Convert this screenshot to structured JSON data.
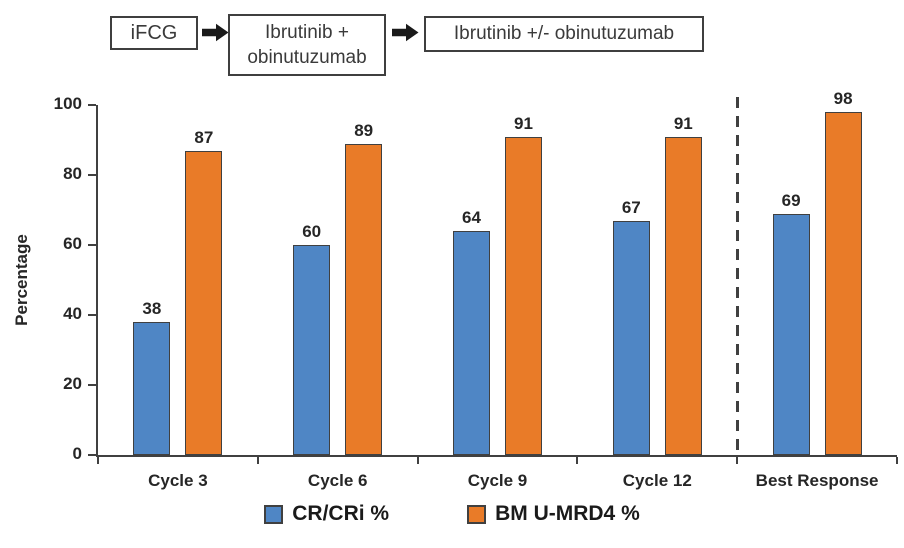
{
  "flow": {
    "steps": [
      {
        "label": "iFCG"
      },
      {
        "label": "Ibrutinib +\nobinutuzumab"
      },
      {
        "label": "Ibrutinib +/- obinutuzumab"
      }
    ],
    "arrow_icon": "right-arrow"
  },
  "chart_data": {
    "type": "bar",
    "title": "",
    "xlabel": "",
    "ylabel": "Percentage",
    "ylim": [
      0,
      100
    ],
    "yticks": [
      0,
      20,
      40,
      60,
      80,
      100
    ],
    "grid": false,
    "legend_position": "bottom",
    "bar_labels": true,
    "categories": [
      "Cycle 3",
      "Cycle 6",
      "Cycle 9",
      "Cycle 12",
      "Best Response"
    ],
    "series": [
      {
        "name": "CR/CRi %",
        "color": "#4F86C5",
        "values": [
          38,
          60,
          64,
          67,
          69
        ]
      },
      {
        "name": "BM U-MRD4 %",
        "color": "#E97B28",
        "values": [
          87,
          89,
          91,
          91,
          98
        ]
      }
    ],
    "separator_before_category": "Best Response"
  },
  "colors": {
    "axis": "#404040",
    "bar_border": "#404040",
    "flow_border": "#3f3f3f",
    "arrow": "#1a1a1a"
  }
}
